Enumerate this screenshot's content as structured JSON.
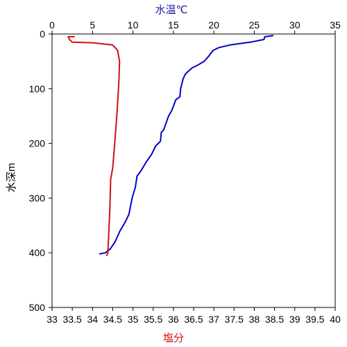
{
  "chart_data": {
    "type": "line",
    "title": "",
    "top_axis": {
      "label": "水温℃",
      "color": "#1a1aa8",
      "range": [
        0,
        35
      ],
      "ticks": [
        "0",
        "5",
        "10",
        "15",
        "20",
        "25",
        "30",
        "35"
      ]
    },
    "bottom_axis": {
      "label": "塩分",
      "color": "#cc1111",
      "range": [
        33,
        40
      ],
      "ticks": [
        "33",
        "33.5",
        "34",
        "34.5",
        "35",
        "35.5",
        "36",
        "36.5",
        "37",
        "37.5",
        "38",
        "38.5",
        "39",
        "39.5",
        "40"
      ]
    },
    "left_axis": {
      "label": "水深m",
      "color": "#000000",
      "range": [
        0,
        500
      ],
      "inverted": true,
      "ticks": [
        "0",
        "100",
        "200",
        "300",
        "400",
        "500"
      ]
    },
    "grid": false,
    "series": [
      {
        "color": "#0000c8",
        "axis": "top",
        "points": [
          {
            "x": 27.3,
            "y": 3
          },
          {
            "x": 26.3,
            "y": 5
          },
          {
            "x": 26.2,
            "y": 10
          },
          {
            "x": 24.5,
            "y": 15
          },
          {
            "x": 22.0,
            "y": 20
          },
          {
            "x": 20.6,
            "y": 25
          },
          {
            "x": 19.9,
            "y": 30
          },
          {
            "x": 19.4,
            "y": 40
          },
          {
            "x": 18.8,
            "y": 50
          },
          {
            "x": 18.0,
            "y": 57
          },
          {
            "x": 17.3,
            "y": 62
          },
          {
            "x": 16.5,
            "y": 73
          },
          {
            "x": 16.2,
            "y": 82
          },
          {
            "x": 15.9,
            "y": 100
          },
          {
            "x": 15.8,
            "y": 115
          },
          {
            "x": 15.3,
            "y": 120
          },
          {
            "x": 14.8,
            "y": 140
          },
          {
            "x": 14.4,
            "y": 150
          },
          {
            "x": 13.8,
            "y": 175
          },
          {
            "x": 13.5,
            "y": 180
          },
          {
            "x": 13.4,
            "y": 196
          },
          {
            "x": 12.8,
            "y": 205
          },
          {
            "x": 12.3,
            "y": 220
          },
          {
            "x": 11.6,
            "y": 235
          },
          {
            "x": 11.0,
            "y": 250
          },
          {
            "x": 10.5,
            "y": 260
          },
          {
            "x": 10.3,
            "y": 280
          },
          {
            "x": 9.9,
            "y": 300
          },
          {
            "x": 9.5,
            "y": 330
          },
          {
            "x": 9.0,
            "y": 345
          },
          {
            "x": 8.4,
            "y": 360
          },
          {
            "x": 7.8,
            "y": 380
          },
          {
            "x": 7.2,
            "y": 393
          },
          {
            "x": 6.6,
            "y": 400
          },
          {
            "x": 5.9,
            "y": 402
          }
        ]
      },
      {
        "color": "#cc1111",
        "axis": "bottom",
        "points": [
          {
            "x": 33.55,
            "y": 5
          },
          {
            "x": 33.4,
            "y": 5
          },
          {
            "x": 33.43,
            "y": 10
          },
          {
            "x": 33.5,
            "y": 15
          },
          {
            "x": 34.0,
            "y": 16
          },
          {
            "x": 34.5,
            "y": 20
          },
          {
            "x": 34.62,
            "y": 30
          },
          {
            "x": 34.67,
            "y": 50
          },
          {
            "x": 34.65,
            "y": 90
          },
          {
            "x": 34.6,
            "y": 150
          },
          {
            "x": 34.55,
            "y": 200
          },
          {
            "x": 34.5,
            "y": 245
          },
          {
            "x": 34.45,
            "y": 265
          },
          {
            "x": 34.43,
            "y": 320
          },
          {
            "x": 34.38,
            "y": 400
          },
          {
            "x": 34.35,
            "y": 405
          }
        ]
      }
    ]
  }
}
